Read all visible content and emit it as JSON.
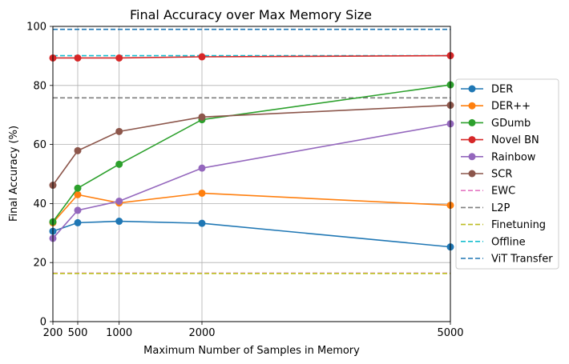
{
  "chart_data": {
    "type": "line",
    "title": "Final Accuracy over Max Memory Size",
    "xlabel": "Maximum Number of Samples in Memory",
    "ylabel": "Final Accuracy (%)",
    "xlim": [
      200,
      5000
    ],
    "ylim": [
      0,
      100
    ],
    "xticks": [
      200,
      500,
      1000,
      2000,
      5000
    ],
    "yticks": [
      0,
      20,
      40,
      60,
      80,
      100
    ],
    "grid": true,
    "legend_position": "center-right outside",
    "x": [
      200,
      500,
      1000,
      2000,
      5000
    ],
    "series": [
      {
        "name": "DER",
        "color": "#1f77b4",
        "style": "line-marker",
        "values": [
          30.6,
          33.5,
          34.0,
          33.3,
          25.3
        ]
      },
      {
        "name": "DER++",
        "color": "#ff7f0e",
        "style": "line-marker",
        "values": [
          33.5,
          43.0,
          40.2,
          43.5,
          39.4
        ]
      },
      {
        "name": "GDumb",
        "color": "#2ca02c",
        "style": "line-marker",
        "values": [
          33.8,
          45.2,
          53.3,
          68.4,
          80.2
        ]
      },
      {
        "name": "Novel BN",
        "color": "#d62728",
        "style": "line-marker",
        "values": [
          89.3,
          89.3,
          89.3,
          89.7,
          90.1
        ]
      },
      {
        "name": "Rainbow",
        "color": "#9467bd",
        "style": "line-marker",
        "values": [
          28.2,
          37.7,
          40.8,
          52.0,
          67.0
        ]
      },
      {
        "name": "SCR",
        "color": "#8c564b",
        "style": "line-marker",
        "values": [
          46.2,
          57.9,
          64.4,
          69.3,
          73.3
        ]
      },
      {
        "name": "EWC",
        "color": "#e377c2",
        "style": "dashed",
        "values": [
          16.4,
          16.4,
          16.4,
          16.4,
          16.4
        ]
      },
      {
        "name": "L2P",
        "color": "#7f7f7f",
        "style": "dashed",
        "values": [
          75.8,
          75.8,
          75.8,
          75.8,
          75.8
        ]
      },
      {
        "name": "Finetuning",
        "color": "#bcbd22",
        "style": "dashed",
        "values": [
          16.3,
          16.3,
          16.3,
          16.3,
          16.3
        ]
      },
      {
        "name": "Offline",
        "color": "#17becf",
        "style": "dashed",
        "values": [
          90.1,
          90.1,
          90.1,
          90.1,
          90.1
        ]
      },
      {
        "name": "ViT Transfer",
        "color": "#1f77b4",
        "style": "dashed",
        "values": [
          99.0,
          99.0,
          99.0,
          99.0,
          99.0
        ]
      }
    ]
  }
}
